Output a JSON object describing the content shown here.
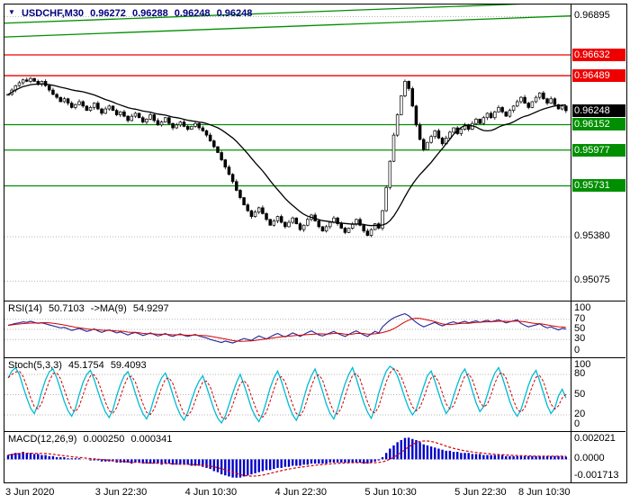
{
  "colors": {
    "header_text": "#00007f",
    "grid": "#b4b4b4",
    "resistance": "#ee0000",
    "support": "#008f00",
    "channel": "#008f00",
    "current_badge": "#000000",
    "candle_up": "#ffffff",
    "candle_down": "#000000",
    "price_ma": "#000000",
    "rsi_line": "#31319c",
    "rsi_ma": "#d40000",
    "stoch_k": "#00bcd4",
    "stoch_d": "#d40000",
    "macd_hist": "#0000c8",
    "macd_signal": "#d40000"
  },
  "time_axis": {
    "labels": [
      "3 Jun 2020",
      "3 Jun 22:30",
      "4 Jun 10:30",
      "4 Jun 22:30",
      "5 Jun 10:30",
      "5 Jun 22:30",
      "8 Jun 10:30"
    ],
    "first_label_bar": 6,
    "label_step_bars": 24
  },
  "chart_data": [
    {
      "id": "price",
      "type": "candlestick",
      "symbol": "USDCHF,M30",
      "ohlc_display": {
        "open": "0.96272",
        "high": "0.96288",
        "low": "0.96248",
        "close": "0.96248"
      },
      "ylim": [
        0.9496,
        0.9696
      ],
      "grid_levels": [
        {
          "value": 0.96895,
          "label": "0.96895"
        },
        {
          "value": 0.9538,
          "label": "0.95380"
        },
        {
          "value": 0.95075,
          "label": "0.95075"
        }
      ],
      "hlines": [
        {
          "value": 0.96632,
          "label": "0.96632",
          "color": "#ee0000",
          "kind": "resistance"
        },
        {
          "value": 0.96489,
          "label": "0.96489",
          "color": "#ee0000",
          "kind": "resistance"
        },
        {
          "value": 0.96152,
          "label": "0.96152",
          "color": "#008f00",
          "kind": "support"
        },
        {
          "value": 0.95977,
          "label": "0.95977",
          "color": "#008f00",
          "kind": "support"
        },
        {
          "value": 0.95731,
          "label": "0.95731",
          "color": "#008f00",
          "kind": "support"
        }
      ],
      "channel_lines": [
        {
          "left": 0.96755,
          "right": 0.969
        },
        {
          "left": 0.9685,
          "right": 0.96995
        }
      ],
      "current": {
        "value": 0.96248,
        "label": "0.96248"
      },
      "ma_period": 20,
      "closes": [
        0.9636,
        0.9639,
        0.9642,
        0.9644,
        0.9646,
        0.9645,
        0.9647,
        0.9645,
        0.9643,
        0.9645,
        0.9642,
        0.9639,
        0.9636,
        0.9634,
        0.9631,
        0.9633,
        0.963,
        0.9627,
        0.9629,
        0.9631,
        0.9628,
        0.9625,
        0.9627,
        0.963,
        0.9626,
        0.9623,
        0.9626,
        0.9628,
        0.9625,
        0.9622,
        0.9624,
        0.9621,
        0.9618,
        0.9621,
        0.9623,
        0.962,
        0.9617,
        0.9619,
        0.9622,
        0.9618,
        0.9615,
        0.9617,
        0.962,
        0.9616,
        0.9613,
        0.9615,
        0.9617,
        0.9614,
        0.9612,
        0.9614,
        0.9616,
        0.9613,
        0.9611,
        0.9608,
        0.9604,
        0.96,
        0.9596,
        0.9591,
        0.9586,
        0.9581,
        0.9576,
        0.957,
        0.9565,
        0.956,
        0.9556,
        0.9552,
        0.9555,
        0.9558,
        0.9554,
        0.955,
        0.9546,
        0.9549,
        0.9552,
        0.9548,
        0.9545,
        0.9548,
        0.9551,
        0.9547,
        0.9543,
        0.9546,
        0.955,
        0.9553,
        0.9549,
        0.9545,
        0.9542,
        0.9545,
        0.9548,
        0.9551,
        0.9547,
        0.9544,
        0.9541,
        0.9544,
        0.9547,
        0.955,
        0.9546,
        0.9542,
        0.9539,
        0.9543,
        0.9547,
        0.9544,
        0.9556,
        0.9572,
        0.959,
        0.9608,
        0.9622,
        0.9635,
        0.9645,
        0.964,
        0.9628,
        0.9615,
        0.9605,
        0.9598,
        0.9603,
        0.9607,
        0.9611,
        0.9606,
        0.9602,
        0.9606,
        0.961,
        0.9613,
        0.9609,
        0.9612,
        0.9615,
        0.9612,
        0.9616,
        0.9619,
        0.9616,
        0.962,
        0.9623,
        0.962,
        0.9624,
        0.9627,
        0.9624,
        0.9621,
        0.9625,
        0.9628,
        0.9631,
        0.9634,
        0.963,
        0.9627,
        0.9631,
        0.9634,
        0.9637,
        0.9633,
        0.963,
        0.9633,
        0.9629,
        0.9626,
        0.9628,
        0.96248
      ]
    },
    {
      "id": "rsi",
      "type": "line",
      "label": "RSI(14)",
      "value": "50.7103",
      "ma_label": "->MA(9)",
      "ma_value": "54.9297",
      "ylim": [
        0,
        100
      ],
      "scale": [
        100,
        70,
        50,
        30,
        0
      ],
      "grid": [
        70,
        50,
        30
      ],
      "ma_period": 9,
      "values": [
        58,
        60,
        62,
        63,
        65,
        64,
        66,
        64,
        62,
        63,
        61,
        59,
        57,
        55,
        53,
        54,
        51,
        48,
        50,
        52,
        49,
        46,
        48,
        51,
        47,
        44,
        47,
        49,
        46,
        43,
        45,
        42,
        39,
        42,
        44,
        41,
        38,
        40,
        43,
        40,
        37,
        39,
        42,
        38,
        36,
        39,
        41,
        38,
        36,
        38,
        40,
        37,
        35,
        33,
        30,
        28,
        26,
        24,
        27,
        25,
        23,
        26,
        29,
        32,
        30,
        28,
        33,
        37,
        34,
        31,
        35,
        39,
        42,
        38,
        35,
        39,
        43,
        40,
        36,
        40,
        44,
        47,
        43,
        39,
        37,
        40,
        43,
        46,
        42,
        39,
        36,
        40,
        44,
        47,
        43,
        39,
        36,
        41,
        46,
        43,
        55,
        62,
        68,
        73,
        76,
        79,
        81,
        77,
        70,
        64,
        59,
        55,
        58,
        61,
        64,
        60,
        57,
        60,
        63,
        65,
        62,
        64,
        66,
        63,
        65,
        67,
        64,
        66,
        68,
        65,
        67,
        69,
        66,
        63,
        65,
        67,
        69,
        62,
        58,
        55,
        57,
        59,
        61,
        56,
        53,
        55,
        52,
        49,
        52,
        50.71
      ]
    },
    {
      "id": "stoch",
      "type": "line",
      "label": "Stoch(5,3,3)",
      "value": "45.1754",
      "value2": "59.4093",
      "ylim": [
        0,
        100
      ],
      "scale": [
        100,
        80,
        50,
        20,
        0
      ],
      "grid": [
        80,
        50,
        20
      ],
      "signal_period": 3,
      "values": [
        75,
        85,
        90,
        80,
        62,
        45,
        30,
        22,
        35,
        55,
        72,
        84,
        88,
        75,
        58,
        40,
        26,
        18,
        30,
        50,
        68,
        80,
        86,
        72,
        55,
        38,
        24,
        16,
        28,
        48,
        65,
        78,
        84,
        70,
        52,
        35,
        22,
        14,
        26,
        45,
        62,
        75,
        82,
        68,
        50,
        33,
        20,
        12,
        24,
        42,
        58,
        70,
        78,
        62,
        45,
        28,
        15,
        8,
        18,
        35,
        52,
        68,
        80,
        65,
        48,
        30,
        18,
        10,
        22,
        40,
        60,
        75,
        85,
        70,
        52,
        34,
        20,
        12,
        25,
        45,
        64,
        78,
        88,
        72,
        55,
        36,
        22,
        14,
        28,
        48,
        66,
        80,
        90,
        74,
        56,
        38,
        24,
        15,
        30,
        52,
        70,
        85,
        92,
        88,
        78,
        62,
        45,
        30,
        20,
        28,
        45,
        62,
        78,
        85,
        70,
        52,
        35,
        22,
        30,
        48,
        65,
        80,
        88,
        74,
        56,
        38,
        25,
        32,
        50,
        68,
        82,
        90,
        76,
        58,
        40,
        26,
        18,
        28,
        46,
        64,
        78,
        86,
        70,
        52,
        34,
        22,
        30,
        48,
        58,
        45.18
      ]
    },
    {
      "id": "macd",
      "type": "bar",
      "label": "MACD(12,26,9)",
      "value": "0.000250",
      "value2": "0.000341",
      "ylim": [
        -0.0019,
        0.0023
      ],
      "scale": [
        {
          "value": 0.002021,
          "label": "0.002021"
        },
        {
          "value": 0,
          "label": "0.0000"
        },
        {
          "value": -0.001713,
          "label": "-0.001713"
        }
      ],
      "signal_period": 9,
      "values": [
        0.0004,
        0.0005,
        0.0006,
        0.0006,
        0.0007,
        0.0006,
        0.0006,
        0.0005,
        0.0005,
        0.0004,
        0.0004,
        0.0003,
        0.0003,
        0.0002,
        0.0002,
        0.0002,
        0.0001,
        0.0001,
        0.0001,
        0.0001,
        0.0,
        0.0,
        -0.0001,
        -0.0001,
        -0.0001,
        -0.0002,
        -0.0002,
        -0.0002,
        -0.0002,
        -0.0003,
        -0.0003,
        -0.0003,
        -0.0003,
        -0.0004,
        -0.0003,
        -0.0003,
        -0.0004,
        -0.0004,
        -0.0004,
        -0.0004,
        -0.0004,
        -0.0005,
        -0.0004,
        -0.0004,
        -0.0005,
        -0.0005,
        -0.0005,
        -0.0005,
        -0.0005,
        -0.0006,
        -0.0006,
        -0.0006,
        -0.0007,
        -0.0008,
        -0.0009,
        -0.0011,
        -0.0012,
        -0.0014,
        -0.0015,
        -0.0016,
        -0.0017,
        -0.001713,
        -0.0017,
        -0.0016,
        -0.0015,
        -0.0014,
        -0.0013,
        -0.0012,
        -0.0011,
        -0.001,
        -0.001,
        -0.0009,
        -0.0008,
        -0.0008,
        -0.0007,
        -0.0007,
        -0.0006,
        -0.0006,
        -0.0006,
        -0.0005,
        -0.0005,
        -0.0004,
        -0.0004,
        -0.0004,
        -0.0004,
        -0.0004,
        -0.0003,
        -0.0003,
        -0.0003,
        -0.0003,
        -0.0003,
        -0.0003,
        -0.0003,
        -0.0003,
        -0.0003,
        -0.0004,
        -0.0004,
        -0.0003,
        -0.0002,
        -0.0001,
        0.0002,
        0.0006,
        0.001,
        0.0013,
        0.0016,
        0.0018,
        0.002,
        0.002021,
        0.0019,
        0.0018,
        0.0016,
        0.0014,
        0.0013,
        0.0012,
        0.0011,
        0.001,
        0.0009,
        0.0008,
        0.0008,
        0.0007,
        0.0007,
        0.0006,
        0.0006,
        0.0006,
        0.0005,
        0.0005,
        0.0005,
        0.0004,
        0.0004,
        0.0004,
        0.0004,
        0.0004,
        0.0004,
        0.0003,
        0.0003,
        0.0003,
        0.0003,
        0.0003,
        0.0003,
        0.0003,
        0.0003,
        0.0003,
        0.0003,
        0.0003,
        0.0003,
        0.0003,
        0.0003,
        0.0003,
        0.0003,
        0.00025
      ]
    }
  ]
}
